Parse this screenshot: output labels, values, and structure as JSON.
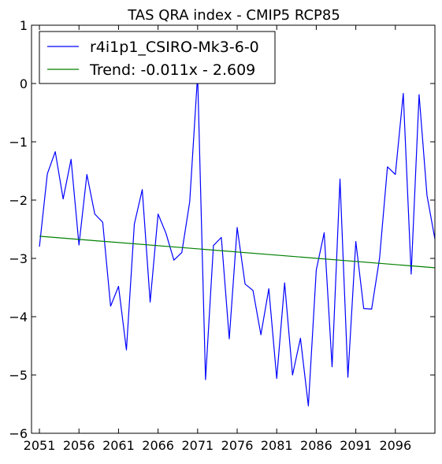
{
  "chart_data": {
    "type": "line",
    "title": "TAS QRA index - CMIP5 RCP85",
    "xlabel": "",
    "ylabel": "",
    "xlim": [
      2050,
      2101
    ],
    "ylim": [
      -6,
      1
    ],
    "x_ticks": [
      2051,
      2056,
      2061,
      2066,
      2071,
      2076,
      2081,
      2086,
      2091,
      2096
    ],
    "y_ticks": [
      1,
      0,
      -1,
      -2,
      -3,
      -4,
      -5,
      -6
    ],
    "grid": false,
    "legend_position": "top-left",
    "series": [
      {
        "name": "r4i1p1_CSIRO-Mk3-6-0",
        "color": "#0000ff",
        "x": [
          2051,
          2052,
          2053,
          2054,
          2055,
          2056,
          2057,
          2058,
          2059,
          2060,
          2061,
          2062,
          2063,
          2064,
          2065,
          2066,
          2067,
          2068,
          2069,
          2070,
          2071,
          2072,
          2073,
          2074,
          2075,
          2076,
          2077,
          2078,
          2079,
          2080,
          2081,
          2082,
          2083,
          2084,
          2085,
          2086,
          2087,
          2088,
          2089,
          2090,
          2091,
          2092,
          2093,
          2094,
          2095,
          2096,
          2097,
          2098,
          2099,
          2100,
          2101
        ],
        "values": [
          -2.8,
          -1.55,
          -1.17,
          -1.98,
          -1.3,
          -2.77,
          -1.56,
          -2.24,
          -2.38,
          -3.82,
          -3.48,
          -4.57,
          -2.41,
          -1.82,
          -3.75,
          -2.24,
          -2.57,
          -3.03,
          -2.9,
          -2.03,
          0.15,
          -5.08,
          -2.78,
          -2.64,
          -4.38,
          -2.47,
          -3.44,
          -3.55,
          -4.31,
          -3.52,
          -5.06,
          -3.42,
          -5.0,
          -4.37,
          -5.53,
          -3.2,
          -2.56,
          -4.86,
          -1.64,
          -5.04,
          -2.71,
          -3.86,
          -3.87,
          -3.0,
          -1.43,
          -1.56,
          -0.17,
          -3.27,
          -0.19,
          -1.92,
          -2.67
        ]
      },
      {
        "name": "Trend: -0.011x - 2.609",
        "color": "#008000",
        "x": [
          2051,
          2101
        ],
        "values": [
          -2.62,
          -3.16
        ]
      }
    ]
  }
}
